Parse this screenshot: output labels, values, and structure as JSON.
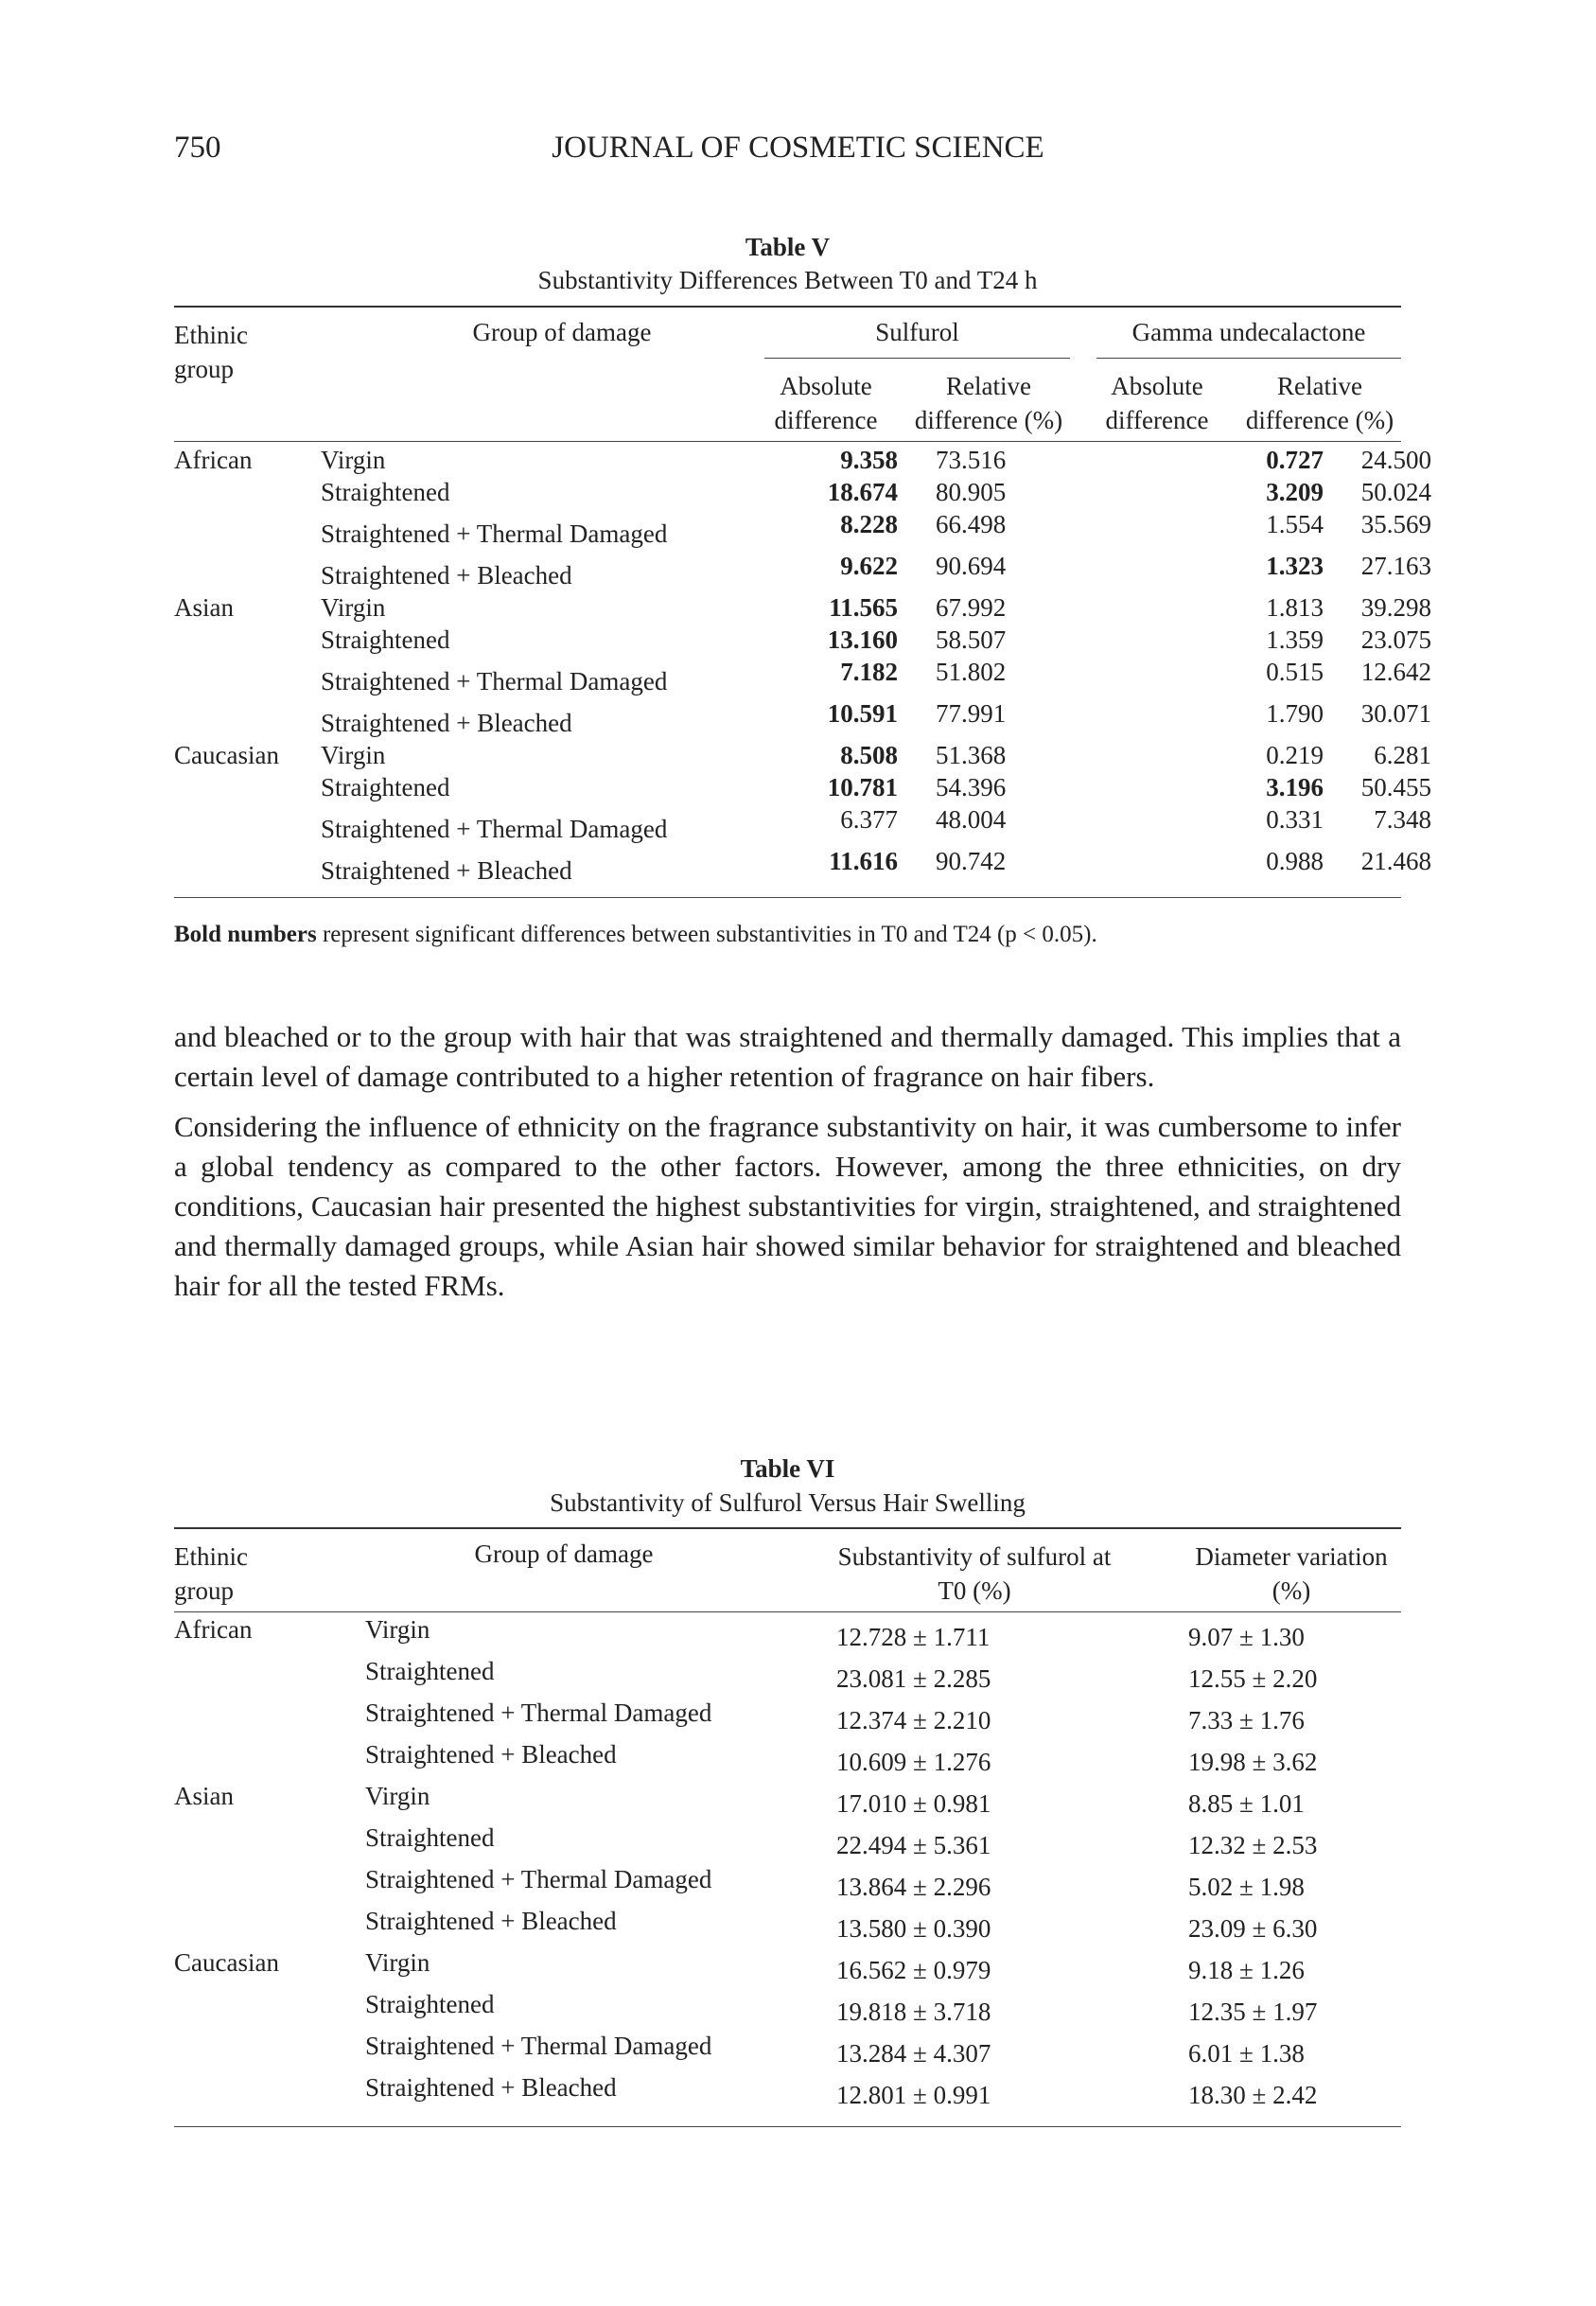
{
  "header": {
    "page_number": "750",
    "journal": "JOURNAL OF COSMETIC SCIENCE"
  },
  "table5": {
    "title": "Table V",
    "subtitle": "Substantivity Differences Between T0 and T24 h",
    "headers": {
      "ethnic": "Ethinic group",
      "group": "Group of damage",
      "sulfurol": "Sulfurol",
      "gamma": "Gamma undecalactone",
      "abs_diff": "Absolute difference",
      "rel_diff": "Relative difference (%)"
    },
    "rows": [
      {
        "ethnic": "African",
        "group": "Virgin",
        "s_abs": "9.358",
        "s_rel": "73.516",
        "g_abs": "0.727",
        "g_rel": "24.500",
        "s_bold": true,
        "g_bold": true
      },
      {
        "ethnic": "",
        "group": "Straightened",
        "s_abs": "18.674",
        "s_rel": "80.905",
        "g_abs": "3.209",
        "g_rel": "50.024",
        "s_bold": true,
        "g_bold": true
      },
      {
        "ethnic": "",
        "group": "Straightened + Thermal Damaged",
        "s_abs": "8.228",
        "s_rel": "66.498",
        "g_abs": "1.554",
        "g_rel": "35.569",
        "s_bold": true,
        "g_bold": false
      },
      {
        "ethnic": "",
        "group": "Straightened + Bleached",
        "s_abs": "9.622",
        "s_rel": "90.694",
        "g_abs": "1.323",
        "g_rel": "27.163",
        "s_bold": true,
        "g_bold": true
      },
      {
        "ethnic": "Asian",
        "group": "Virgin",
        "s_abs": "11.565",
        "s_rel": "67.992",
        "g_abs": "1.813",
        "g_rel": "39.298",
        "s_bold": true,
        "g_bold": false
      },
      {
        "ethnic": "",
        "group": "Straightened",
        "s_abs": "13.160",
        "s_rel": "58.507",
        "g_abs": "1.359",
        "g_rel": "23.075",
        "s_bold": true,
        "g_bold": false
      },
      {
        "ethnic": "",
        "group": "Straightened + Thermal Damaged",
        "s_abs": "7.182",
        "s_rel": "51.802",
        "g_abs": "0.515",
        "g_rel": "12.642",
        "s_bold": true,
        "g_bold": false
      },
      {
        "ethnic": "",
        "group": "Straightened + Bleached",
        "s_abs": "10.591",
        "s_rel": "77.991",
        "g_abs": "1.790",
        "g_rel": "30.071",
        "s_bold": true,
        "g_bold": false
      },
      {
        "ethnic": "Caucasian",
        "group": "Virgin",
        "s_abs": "8.508",
        "s_rel": "51.368",
        "g_abs": "0.219",
        "g_rel": "6.281",
        "s_bold": true,
        "g_bold": false
      },
      {
        "ethnic": "",
        "group": "Straightened",
        "s_abs": "10.781",
        "s_rel": "54.396",
        "g_abs": "3.196",
        "g_rel": "50.455",
        "s_bold": true,
        "g_bold": true
      },
      {
        "ethnic": "",
        "group": "Straightened + Thermal Damaged",
        "s_abs": "6.377",
        "s_rel": "48.004",
        "g_abs": "0.331",
        "g_rel": "7.348",
        "s_bold": false,
        "g_bold": false
      },
      {
        "ethnic": "",
        "group": "Straightened + Bleached",
        "s_abs": "11.616",
        "s_rel": "90.742",
        "g_abs": "0.988",
        "g_rel": "21.468",
        "s_bold": true,
        "g_bold": false
      }
    ],
    "note_bold": "Bold numbers",
    "note_rest": "represent significant differences between substantivities in T0 and T24 (p < 0.05)."
  },
  "paragraphs": [
    "and bleached or to the group with hair that was straightened and thermally damaged. This implies that a certain level of damage contributed to a higher retention of fragrance on hair fibers.",
    "Considering the influence of ethnicity on the fragrance substantivity on hair, it was cumbersome to infer a global tendency as compared to the other factors. However, among the three ethnicities, on dry conditions, Caucasian hair presented the highest substantivities for virgin, straightened, and straightened and thermally damaged groups, while Asian hair showed similar behavior for straightened and bleached hair for all the tested FRMs."
  ],
  "table6": {
    "title": "Table VI",
    "subtitle": "Substantivity of Sulfurol Versus Hair Swelling",
    "headers": {
      "ethnic": "Ethinic group",
      "group": "Group of damage",
      "sulfurol": "Substantivity of sulfurol at T0 (%)",
      "diameter": "Diameter variation (%)"
    },
    "rows": [
      {
        "ethnic": "African",
        "group": "Virgin",
        "sulf": "12.728 ± 1.711",
        "diam": "9.07 ± 1.30"
      },
      {
        "ethnic": "",
        "group": "Straightened",
        "sulf": "23.081 ± 2.285",
        "diam": "12.55 ± 2.20"
      },
      {
        "ethnic": "",
        "group": "Straightened + Thermal Damaged",
        "sulf": "12.374 ± 2.210",
        "diam": "7.33 ± 1.76"
      },
      {
        "ethnic": "",
        "group": "Straightened + Bleached",
        "sulf": "10.609 ± 1.276",
        "diam": "19.98 ± 3.62"
      },
      {
        "ethnic": "Asian",
        "group": "Virgin",
        "sulf": "17.010 ± 0.981",
        "diam": "8.85 ± 1.01"
      },
      {
        "ethnic": "",
        "group": "Straightened",
        "sulf": "22.494 ± 5.361",
        "diam": "12.32 ± 2.53"
      },
      {
        "ethnic": "",
        "group": "Straightened + Thermal Damaged",
        "sulf": "13.864 ± 2.296",
        "diam": "5.02 ± 1.98"
      },
      {
        "ethnic": "",
        "group": "Straightened + Bleached",
        "sulf": "13.580 ± 0.390",
        "diam": "23.09 ± 6.30"
      },
      {
        "ethnic": "Caucasian",
        "group": "Virgin",
        "sulf": "16.562 ± 0.979",
        "diam": "9.18 ± 1.26"
      },
      {
        "ethnic": "",
        "group": "Straightened",
        "sulf": "19.818 ± 3.718",
        "diam": "12.35 ± 1.97"
      },
      {
        "ethnic": "",
        "group": "Straightened + Thermal Damaged",
        "sulf": "13.284 ± 4.307",
        "diam": "6.01 ± 1.38"
      },
      {
        "ethnic": "",
        "group": "Straightened + Bleached",
        "sulf": "12.801 ± 0.991",
        "diam": "18.30 ± 2.42"
      }
    ]
  }
}
